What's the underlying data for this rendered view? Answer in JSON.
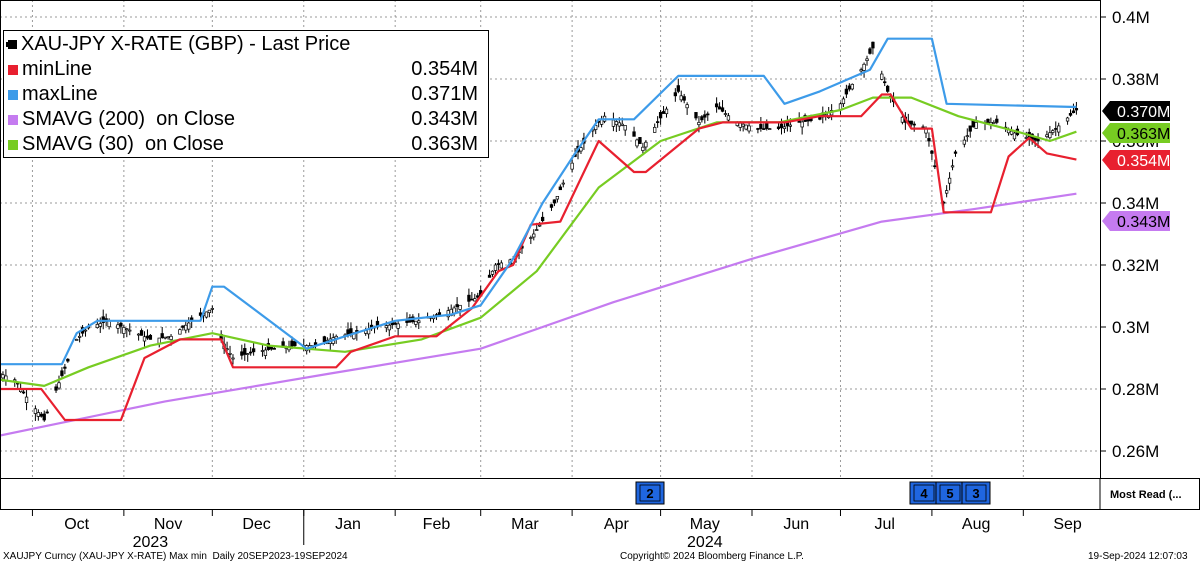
{
  "legend": {
    "title": "XAU-JPY X-RATE (GBP) - Last Price",
    "items": [
      {
        "name": "minLine",
        "value": "0.354M",
        "color": "#e8202f"
      },
      {
        "name": "maxLine",
        "value": "0.371M",
        "color": "#3d9be9"
      },
      {
        "name": "SMAVG (200)  on Close",
        "value": "0.343M",
        "color": "#c57bf0"
      },
      {
        "name": "SMAVG (30)  on Close",
        "value": "0.363M",
        "color": "#77cc22"
      }
    ]
  },
  "events": {
    "label": "Most Read (...",
    "markers": [
      "2",
      "4",
      "5",
      "3"
    ]
  },
  "footer": {
    "left": "XAUJPY Curncy (XAU-JPY X-RATE) Max min  Daily 20SEP2023-19SEP2024",
    "center": "Copyright© 2024 Bloomberg Finance L.P.",
    "right": "19-Sep-2024 12:07:03"
  },
  "chart_data": {
    "type": "line",
    "title": "XAU-JPY X-RATE (GBP) - Last Price",
    "ylim": [
      0.25,
      0.4
    ],
    "yticks": [
      "0.26M",
      "0.28M",
      "0.3M",
      "0.32M",
      "0.34M",
      "0.36M",
      "0.38M",
      "0.4M"
    ],
    "ytick_values": [
      0.26,
      0.28,
      0.3,
      0.32,
      0.34,
      0.36,
      0.38,
      0.4
    ],
    "x_months": [
      "Oct",
      "Nov",
      "Dec",
      "Jan",
      "Feb",
      "Mar",
      "Apr",
      "May",
      "Jun",
      "Jul",
      "Aug",
      "Sep"
    ],
    "x_years": [
      "2023",
      "2024"
    ],
    "x_range": [
      "2023-09-20",
      "2024-09-19"
    ],
    "grid": true,
    "last_values": [
      {
        "label": "0.370M",
        "value": 0.37,
        "color": "#000000"
      },
      {
        "label": "0.363M",
        "value": 0.363,
        "color": "#77cc22"
      },
      {
        "label": "0.354M",
        "value": 0.354,
        "color": "#e8202f"
      },
      {
        "label": "0.343M",
        "value": 0.343,
        "color": "#c57bf0"
      }
    ],
    "series": [
      {
        "name": "XAU-JPY X-RATE (GBP) - Last Price",
        "color": "#000000",
        "x": [
          "2023-09-20",
          "2023-09-25",
          "2023-09-30",
          "2023-10-05",
          "2023-10-10",
          "2023-10-16",
          "2023-10-20",
          "2023-10-27",
          "2023-11-03",
          "2023-11-10",
          "2023-11-17",
          "2023-11-24",
          "2023-12-01",
          "2023-12-04",
          "2023-12-08",
          "2023-12-15",
          "2023-12-22",
          "2023-12-29",
          "2024-01-05",
          "2024-01-12",
          "2024-01-19",
          "2024-01-26",
          "2024-02-02",
          "2024-02-09",
          "2024-02-16",
          "2024-02-23",
          "2024-03-01",
          "2024-03-06",
          "2024-03-12",
          "2024-03-19",
          "2024-03-26",
          "2024-04-02",
          "2024-04-09",
          "2024-04-12",
          "2024-04-19",
          "2024-04-25",
          "2024-04-30",
          "2024-05-07",
          "2024-05-14",
          "2024-05-20",
          "2024-05-27",
          "2024-06-03",
          "2024-06-10",
          "2024-06-17",
          "2024-06-24",
          "2024-07-01",
          "2024-07-08",
          "2024-07-12",
          "2024-07-17",
          "2024-07-23",
          "2024-07-30",
          "2024-08-05",
          "2024-08-09",
          "2024-08-16",
          "2024-08-23",
          "2024-08-30",
          "2024-09-06",
          "2024-09-12",
          "2024-09-19"
        ],
        "values": [
          0.285,
          0.283,
          0.276,
          0.27,
          0.282,
          0.296,
          0.3,
          0.302,
          0.299,
          0.296,
          0.297,
          0.302,
          0.306,
          0.296,
          0.29,
          0.292,
          0.293,
          0.294,
          0.294,
          0.297,
          0.298,
          0.3,
          0.301,
          0.302,
          0.304,
          0.307,
          0.31,
          0.32,
          0.322,
          0.33,
          0.34,
          0.355,
          0.365,
          0.368,
          0.365,
          0.358,
          0.366,
          0.376,
          0.366,
          0.371,
          0.366,
          0.364,
          0.364,
          0.366,
          0.367,
          0.372,
          0.383,
          0.39,
          0.376,
          0.366,
          0.364,
          0.34,
          0.356,
          0.366,
          0.366,
          0.362,
          0.36,
          0.364,
          0.37
        ]
      },
      {
        "name": "maxLine",
        "color": "#3d9be9",
        "x": [
          "2023-09-20",
          "2023-10-11",
          "2023-10-16",
          "2023-10-23",
          "2023-11-27",
          "2023-12-01",
          "2023-12-05",
          "2024-01-02",
          "2024-01-15",
          "2024-02-01",
          "2024-02-20",
          "2024-03-01",
          "2024-03-12",
          "2024-03-22",
          "2024-04-02",
          "2024-04-10",
          "2024-04-22",
          "2024-05-07",
          "2024-06-05",
          "2024-06-12",
          "2024-06-24",
          "2024-07-11",
          "2024-07-17",
          "2024-08-01",
          "2024-08-06",
          "2024-09-17",
          "2024-09-19"
        ],
        "values": [
          0.288,
          0.288,
          0.298,
          0.302,
          0.302,
          0.313,
          0.313,
          0.293,
          0.297,
          0.302,
          0.304,
          0.307,
          0.322,
          0.34,
          0.356,
          0.367,
          0.367,
          0.381,
          0.381,
          0.372,
          0.376,
          0.383,
          0.393,
          0.393,
          0.372,
          0.371,
          0.371
        ]
      },
      {
        "name": "minLine",
        "color": "#e8202f",
        "x": [
          "2023-09-20",
          "2023-10-04",
          "2023-10-12",
          "2023-10-31",
          "2023-11-08",
          "2023-11-20",
          "2023-12-04",
          "2023-12-08",
          "2024-01-12",
          "2024-01-17",
          "2024-02-01",
          "2024-02-15",
          "2024-02-27",
          "2024-03-07",
          "2024-03-12",
          "2024-03-18",
          "2024-03-28",
          "2024-04-10",
          "2024-04-22",
          "2024-04-26",
          "2024-05-14",
          "2024-05-22",
          "2024-06-12",
          "2024-06-24",
          "2024-07-08",
          "2024-07-15",
          "2024-07-18",
          "2024-07-25",
          "2024-08-01",
          "2024-08-05",
          "2024-08-21",
          "2024-08-27",
          "2024-09-03",
          "2024-09-09",
          "2024-09-19"
        ],
        "values": [
          0.28,
          0.28,
          0.27,
          0.27,
          0.29,
          0.296,
          0.296,
          0.287,
          0.287,
          0.292,
          0.297,
          0.297,
          0.306,
          0.318,
          0.32,
          0.333,
          0.334,
          0.36,
          0.35,
          0.35,
          0.364,
          0.366,
          0.366,
          0.368,
          0.368,
          0.375,
          0.375,
          0.364,
          0.364,
          0.337,
          0.337,
          0.355,
          0.361,
          0.356,
          0.354
        ]
      },
      {
        "name": "SMAVG (200)  on Close",
        "color": "#c57bf0",
        "x": [
          "2023-09-20",
          "2023-11-15",
          "2024-01-10",
          "2024-03-01",
          "2024-04-15",
          "2024-06-01",
          "2024-07-15",
          "2024-08-15",
          "2024-09-19"
        ],
        "values": [
          0.265,
          0.276,
          0.285,
          0.293,
          0.308,
          0.322,
          0.334,
          0.338,
          0.343
        ]
      },
      {
        "name": "SMAVG (30)  on Close",
        "color": "#77cc22",
        "x": [
          "2023-09-20",
          "2023-10-05",
          "2023-10-20",
          "2023-11-10",
          "2023-12-01",
          "2023-12-20",
          "2024-01-15",
          "2024-02-10",
          "2024-03-01",
          "2024-03-20",
          "2024-04-10",
          "2024-05-01",
          "2024-05-20",
          "2024-06-10",
          "2024-07-01",
          "2024-07-12",
          "2024-07-25",
          "2024-08-10",
          "2024-08-30",
          "2024-09-10",
          "2024-09-19"
        ],
        "values": [
          0.283,
          0.281,
          0.287,
          0.294,
          0.298,
          0.294,
          0.292,
          0.296,
          0.303,
          0.318,
          0.345,
          0.36,
          0.366,
          0.366,
          0.37,
          0.374,
          0.374,
          0.368,
          0.363,
          0.36,
          0.363
        ]
      }
    ]
  }
}
